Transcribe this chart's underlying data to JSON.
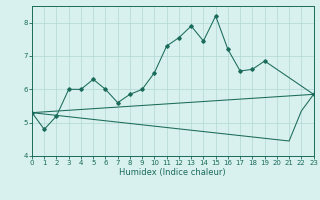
{
  "x": [
    0,
    1,
    2,
    3,
    4,
    5,
    6,
    7,
    8,
    9,
    10,
    11,
    12,
    13,
    14,
    15,
    16,
    17,
    18,
    19,
    20,
    21,
    22,
    23
  ],
  "line1": [
    5.3,
    4.8,
    5.2,
    6.0,
    6.0,
    6.3,
    6.0,
    5.6,
    5.85,
    6.0,
    6.5,
    7.3,
    7.55,
    7.9,
    7.45,
    8.2,
    7.2,
    6.55,
    6.6,
    6.85,
    null,
    null,
    null,
    5.85
  ],
  "line2": [
    5.3,
    null,
    null,
    null,
    null,
    null,
    null,
    null,
    null,
    null,
    null,
    null,
    null,
    null,
    null,
    null,
    null,
    null,
    null,
    null,
    null,
    null,
    null,
    5.85
  ],
  "line3": [
    5.3,
    null,
    null,
    null,
    null,
    null,
    null,
    null,
    null,
    null,
    null,
    null,
    null,
    null,
    null,
    null,
    null,
    null,
    null,
    null,
    null,
    4.45,
    5.35,
    5.85
  ],
  "line_color": "#1a6b5a",
  "bg_color": "#d8f0ee",
  "grid_color": "#b0d8d4",
  "xlabel": "Humidex (Indice chaleur)",
  "ylim": [
    4.0,
    8.5
  ],
  "xlim": [
    0,
    23
  ],
  "yticks": [
    4,
    5,
    6,
    7,
    8
  ],
  "xticks": [
    0,
    1,
    2,
    3,
    4,
    5,
    6,
    7,
    8,
    9,
    10,
    11,
    12,
    13,
    14,
    15,
    16,
    17,
    18,
    19,
    20,
    21,
    22,
    23
  ],
  "figsize": [
    3.2,
    2.0
  ],
  "dpi": 100
}
